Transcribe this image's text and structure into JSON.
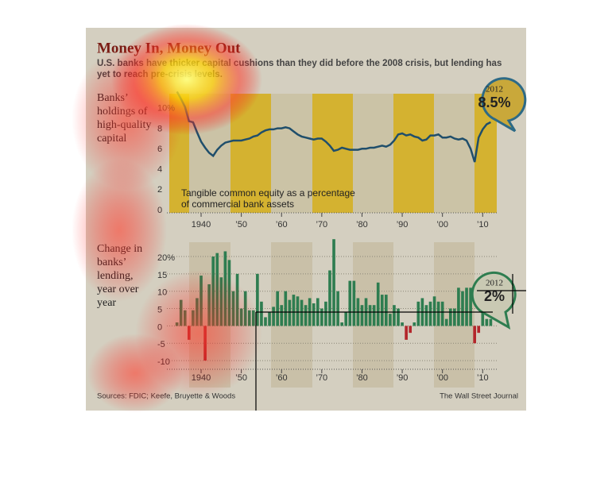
{
  "title": "Money In, Money Out",
  "subtitle": [
    "U.S. banks have thicker capital cushions than they did before the 2008 crisis, but lending has",
    "yet to reach pre-crisis levels."
  ],
  "source": "Sources: FDIC; Keefe, Bruyette & Woods",
  "credit": "The Wall Street Journal",
  "chart_data": [
    {
      "type": "line",
      "axis_label": [
        "Banks’",
        "holdings of",
        "high-quality",
        "capital"
      ],
      "annotation": [
        "Tangible common equity as a percentage",
        "of commercial bank assets"
      ],
      "callout": {
        "year": "2012",
        "label": "8.5%"
      },
      "color": "#1f4e6b",
      "x": [
        1934,
        1935,
        1936,
        1937,
        1938,
        1939,
        1940,
        1941,
        1942,
        1943,
        1944,
        1945,
        1946,
        1947,
        1948,
        1949,
        1950,
        1951,
        1952,
        1953,
        1954,
        1955,
        1956,
        1957,
        1958,
        1959,
        1960,
        1961,
        1962,
        1963,
        1964,
        1965,
        1966,
        1967,
        1968,
        1969,
        1970,
        1971,
        1972,
        1973,
        1974,
        1975,
        1976,
        1977,
        1978,
        1979,
        1980,
        1981,
        1982,
        1983,
        1984,
        1985,
        1986,
        1987,
        1988,
        1989,
        1990,
        1991,
        1992,
        1993,
        1994,
        1995,
        1996,
        1997,
        1998,
        1999,
        2000,
        2001,
        2002,
        2003,
        2004,
        2005,
        2006,
        2007,
        2008,
        2009,
        2010,
        2011,
        2012
      ],
      "values": [
        11.5,
        10.8,
        10.0,
        8.6,
        8.5,
        7.5,
        6.6,
        6.0,
        5.5,
        5.2,
        5.8,
        6.2,
        6.5,
        6.6,
        6.7,
        6.7,
        6.7,
        6.8,
        6.9,
        7.1,
        7.2,
        7.5,
        7.7,
        7.8,
        7.8,
        7.9,
        7.9,
        8.0,
        7.9,
        7.6,
        7.3,
        7.1,
        7.0,
        6.9,
        6.8,
        6.9,
        6.9,
        6.6,
        6.2,
        5.7,
        5.8,
        6.0,
        5.9,
        5.8,
        5.8,
        5.8,
        5.9,
        5.9,
        6.0,
        6.0,
        6.1,
        6.2,
        6.1,
        6.3,
        6.7,
        7.3,
        7.4,
        7.2,
        7.3,
        7.1,
        7.0,
        6.7,
        6.8,
        7.2,
        7.2,
        7.3,
        7.0,
        7.0,
        7.1,
        6.9,
        6.8,
        6.9,
        6.7,
        5.9,
        4.6,
        7.0,
        7.8,
        8.3,
        8.5
      ],
      "xlim": [
        1931.5,
        2013.5
      ],
      "xticks": [
        {
          "value": 1940,
          "label": "1940"
        },
        {
          "value": 1950,
          "label": "’50"
        },
        {
          "value": 1960,
          "label": "’60"
        },
        {
          "value": 1970,
          "label": "’70"
        },
        {
          "value": 1980,
          "label": "’80"
        },
        {
          "value": 1990,
          "label": "’90"
        },
        {
          "value": 2000,
          "label": "’00"
        },
        {
          "value": 2010,
          "label": "’10"
        }
      ],
      "ylim": [
        0,
        11.3
      ],
      "yticks": [
        0,
        2,
        4,
        6,
        8,
        {
          "value": 10,
          "label": "10%"
        }
      ]
    },
    {
      "type": "bar",
      "axis_label": [
        "Change in",
        "banks’",
        "lending,",
        "year over",
        "year"
      ],
      "callout": {
        "year": "2012",
        "label": "2%"
      },
      "color": "#2e7d50",
      "negative_color": "#b3262b",
      "grid": true,
      "x": [
        1934,
        1935,
        1936,
        1937,
        1938,
        1939,
        1940,
        1941,
        1942,
        1943,
        1944,
        1945,
        1946,
        1947,
        1948,
        1949,
        1950,
        1951,
        1952,
        1953,
        1954,
        1955,
        1956,
        1957,
        1958,
        1959,
        1960,
        1961,
        1962,
        1963,
        1964,
        1965,
        1966,
        1967,
        1968,
        1969,
        1970,
        1971,
        1972,
        1973,
        1974,
        1975,
        1976,
        1977,
        1978,
        1979,
        1980,
        1981,
        1982,
        1983,
        1984,
        1985,
        1986,
        1987,
        1988,
        1989,
        1990,
        1991,
        1992,
        1993,
        1994,
        1995,
        1996,
        1997,
        1998,
        1999,
        2000,
        2001,
        2002,
        2003,
        2004,
        2005,
        2006,
        2007,
        2008,
        2009,
        2010,
        2011,
        2012
      ],
      "values": [
        1,
        7.5,
        4.5,
        -4,
        4.5,
        8,
        14.5,
        -10,
        12,
        20,
        21,
        14,
        21.5,
        19,
        10,
        15,
        5,
        10,
        4.5,
        4.5,
        15,
        7,
        2.5,
        4,
        5.5,
        10,
        6,
        10,
        7.5,
        9,
        8.5,
        7.5,
        6,
        8,
        6.5,
        8,
        5,
        7,
        16,
        25,
        10,
        1,
        4,
        13,
        13,
        8,
        6,
        8,
        6,
        6,
        12.5,
        9,
        9,
        3.5,
        6,
        5,
        1,
        -4,
        -2,
        1,
        7,
        8,
        6,
        7,
        8.5,
        7,
        7,
        2,
        5,
        5,
        11,
        10,
        11,
        11,
        -5,
        -2,
        4.5,
        2,
        2
      ],
      "xlim": [
        1931.5,
        2013.5
      ],
      "xticks": [
        {
          "value": 1940,
          "label": "1940"
        },
        {
          "value": 1950,
          "label": "’50"
        },
        {
          "value": 1960,
          "label": "’60"
        },
        {
          "value": 1970,
          "label": "’70"
        },
        {
          "value": 1980,
          "label": "’80"
        },
        {
          "value": 1990,
          "label": "’90"
        },
        {
          "value": 2000,
          "label": "’00"
        },
        {
          "value": 2010,
          "label": "’10"
        }
      ],
      "ylim": [
        -12.5,
        25.5
      ],
      "yticks": [
        {
          "value": 20,
          "label": "20%"
        },
        15,
        10,
        5,
        0,
        -5,
        -10
      ]
    }
  ]
}
